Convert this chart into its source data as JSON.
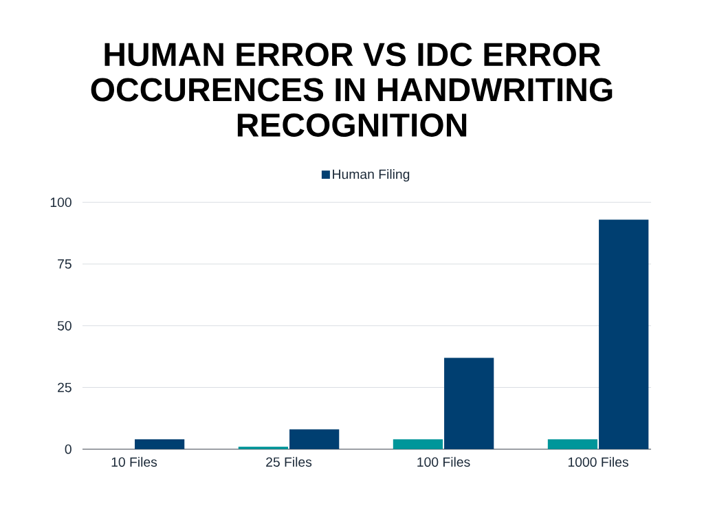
{
  "chart_data": {
    "type": "bar",
    "title": "HUMAN ERROR VS IDC ERROR OCCURENCES IN HANDWRITING RECOGNITION",
    "categories": [
      "10 Files",
      "25 Files",
      "100 Files",
      "1000 Files"
    ],
    "series": [
      {
        "color": "#00969a",
        "values": [
          0,
          1,
          4,
          4
        ]
      },
      {
        "name": "Human Filing",
        "color": "#003f71",
        "values": [
          4,
          8,
          37,
          93
        ]
      }
    ],
    "ylim": [
      0,
      100
    ],
    "yticks": [
      0,
      25,
      50,
      75,
      100
    ],
    "grid": "y",
    "legend": "top"
  }
}
